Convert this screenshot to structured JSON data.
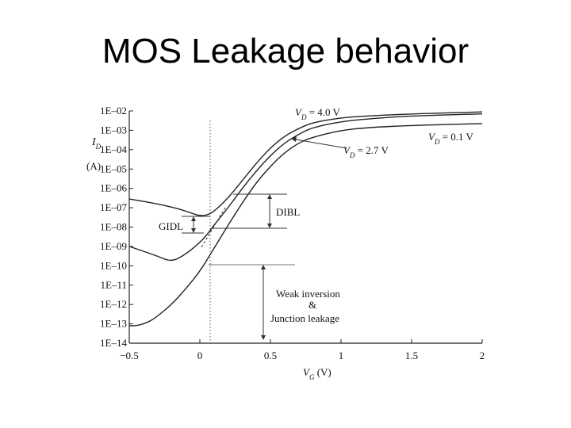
{
  "slide": {
    "title": "MOS Leakage behavior"
  },
  "chart_data": {
    "type": "line",
    "title": "",
    "xlabel": "V_G (V)",
    "ylabel": "I_D (A)",
    "ylabel_parts": {
      "main": "I",
      "sub": "D",
      "unit": "(A)"
    },
    "xlabel_parts": {
      "main": "V",
      "sub": "G",
      "unit": " (V)"
    },
    "xlim": [
      -0.5,
      2
    ],
    "ylim": [
      -14,
      -2
    ],
    "y_scale": "log",
    "x_ticks": [
      {
        "value": -0.5,
        "label": "−0.5"
      },
      {
        "value": 0,
        "label": "0"
      },
      {
        "value": 0.5,
        "label": "0.5"
      },
      {
        "value": 1,
        "label": "1"
      },
      {
        "value": 1.5,
        "label": "1.5"
      },
      {
        "value": 2,
        "label": "2"
      }
    ],
    "y_ticks": [
      {
        "value": -2,
        "label": "1E–02"
      },
      {
        "value": -3,
        "label": "1E–03"
      },
      {
        "value": -4,
        "label": "1E–04"
      },
      {
        "value": -5,
        "label": "1E–05"
      },
      {
        "value": -6,
        "label": "1E–06"
      },
      {
        "value": -7,
        "label": "1E–07"
      },
      {
        "value": -8,
        "label": "1E–08"
      },
      {
        "value": -9,
        "label": "1E–09"
      },
      {
        "value": -10,
        "label": "1E–10"
      },
      {
        "value": -11,
        "label": "1E–11"
      },
      {
        "value": -12,
        "label": "1E–12"
      },
      {
        "value": -13,
        "label": "1E–13"
      },
      {
        "value": -14,
        "label": "1E–14"
      }
    ],
    "series": [
      {
        "name": "V_D = 4.0 V",
        "label": {
          "main": "V",
          "sub": "D",
          "rest": " = 4.0 V"
        },
        "x": [
          -0.5,
          -0.3,
          -0.15,
          -0.05,
          0.0,
          0.05,
          0.1,
          0.2,
          0.3,
          0.4,
          0.5,
          0.6,
          0.7,
          0.8,
          1.0,
          1.2,
          1.5,
          2.0
        ],
        "log10_y": [
          -6.55,
          -6.8,
          -7.05,
          -7.3,
          -7.42,
          -7.38,
          -7.2,
          -6.5,
          -5.6,
          -4.7,
          -3.9,
          -3.3,
          -2.9,
          -2.6,
          -2.35,
          -2.25,
          -2.15,
          -2.05
        ]
      },
      {
        "name": "V_D = 2.7 V",
        "label": {
          "main": "V",
          "sub": "D",
          "rest": " = 2.7 V"
        },
        "x": [
          -0.5,
          -0.3,
          -0.2,
          -0.1,
          0.0,
          0.05,
          0.1,
          0.2,
          0.3,
          0.4,
          0.5,
          0.6,
          0.7,
          0.8,
          1.0,
          1.2,
          1.5,
          2.0
        ],
        "log10_y": [
          -9.0,
          -9.5,
          -9.8,
          -9.4,
          -8.8,
          -8.4,
          -7.9,
          -7.0,
          -6.0,
          -5.1,
          -4.3,
          -3.65,
          -3.2,
          -2.85,
          -2.55,
          -2.4,
          -2.25,
          -2.15
        ]
      },
      {
        "name": "V_D = 0.1 V",
        "label": {
          "main": "V",
          "sub": "D",
          "rest": " = 0.1 V"
        },
        "x": [
          -0.5,
          -0.45,
          -0.4,
          -0.35,
          -0.3,
          -0.2,
          -0.1,
          0.0,
          0.1,
          0.2,
          0.3,
          0.4,
          0.5,
          0.6,
          0.7,
          0.8,
          1.0,
          1.2,
          1.5,
          2.0
        ],
        "log10_y": [
          -13.1,
          -13.1,
          -13.0,
          -12.85,
          -12.6,
          -12.0,
          -11.2,
          -10.3,
          -9.1,
          -7.9,
          -6.75,
          -5.7,
          -4.85,
          -4.15,
          -3.65,
          -3.35,
          -3.0,
          -2.85,
          -2.75,
          -2.65
        ]
      }
    ],
    "annotations": {
      "gidl": "GIDL",
      "dibl": "DIBL",
      "weak_line1": "Weak inversion",
      "weak_line2": "&",
      "weak_line3": "Junction leakage"
    }
  }
}
